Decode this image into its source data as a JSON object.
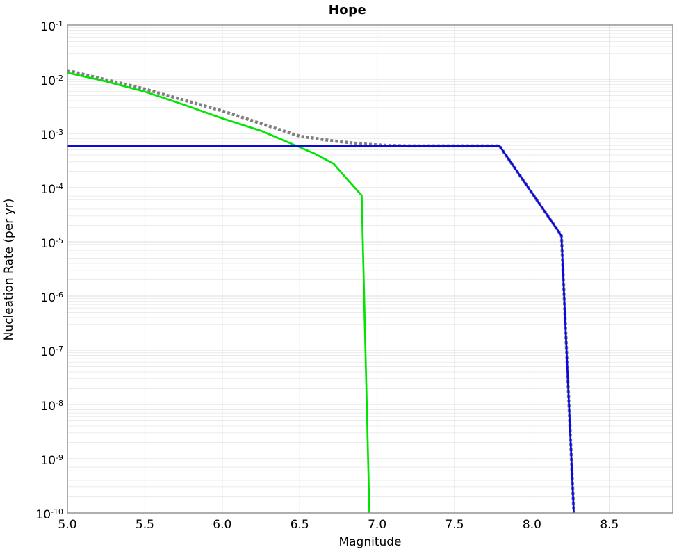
{
  "chart_data": {
    "type": "line",
    "title": "Hope",
    "xlabel": "Magnitude",
    "ylabel": "Nucleation Rate (per yr)",
    "x_scale": "linear",
    "y_scale": "log",
    "xlim": [
      5.0,
      8.909
    ],
    "ylim": [
      1e-10,
      0.1
    ],
    "x_ticks": [
      5.0,
      5.5,
      6.0,
      6.5,
      7.0,
      7.5,
      8.0,
      8.5
    ],
    "y_tick_exponents": [
      -1,
      -2,
      -3,
      -4,
      -5,
      -6,
      -7,
      -8,
      -9,
      -10
    ],
    "grid": "major and minor, light gray, on",
    "legend": "none",
    "frame_color": "#8c8c8c",
    "major_grid_color": "#dcdcdc",
    "minor_grid_color": "#ebebeb",
    "series": [
      {
        "name": "gray-dotted-envelope",
        "style": "dotted",
        "color": "#7f7f7f",
        "width": 4.5,
        "points": [
          [
            5.0,
            0.0145
          ],
          [
            5.5,
            0.0066
          ],
          [
            6.0,
            0.0026
          ],
          [
            6.5,
            0.00089
          ],
          [
            6.7,
            0.00074
          ],
          [
            6.9,
            0.00064
          ],
          [
            7.05,
            0.000605
          ],
          [
            7.2,
            0.00059
          ],
          [
            7.79,
            0.00059
          ],
          [
            8.19,
            1.3e-05
          ],
          [
            8.27,
            1e-10
          ]
        ]
      },
      {
        "name": "green-curve",
        "style": "solid",
        "color": "#00e500",
        "width": 2.7,
        "points": [
          [
            5.0,
            0.0132
          ],
          [
            5.25,
            0.0091
          ],
          [
            5.5,
            0.0059
          ],
          [
            5.75,
            0.0034
          ],
          [
            6.0,
            0.0019
          ],
          [
            6.25,
            0.00112
          ],
          [
            6.48,
            0.00059
          ],
          [
            6.6,
            0.00042
          ],
          [
            6.72,
            0.000275
          ],
          [
            6.8,
            0.00015
          ],
          [
            6.9,
            7.2e-05
          ],
          [
            6.95,
            1e-10
          ]
        ]
      },
      {
        "name": "blue-curve",
        "style": "solid",
        "color": "#0909e0",
        "width": 2.7,
        "points": [
          [
            5.0,
            0.00059
          ],
          [
            7.79,
            0.00059
          ],
          [
            8.19,
            1.3e-05
          ],
          [
            8.27,
            1e-10
          ]
        ]
      }
    ]
  }
}
